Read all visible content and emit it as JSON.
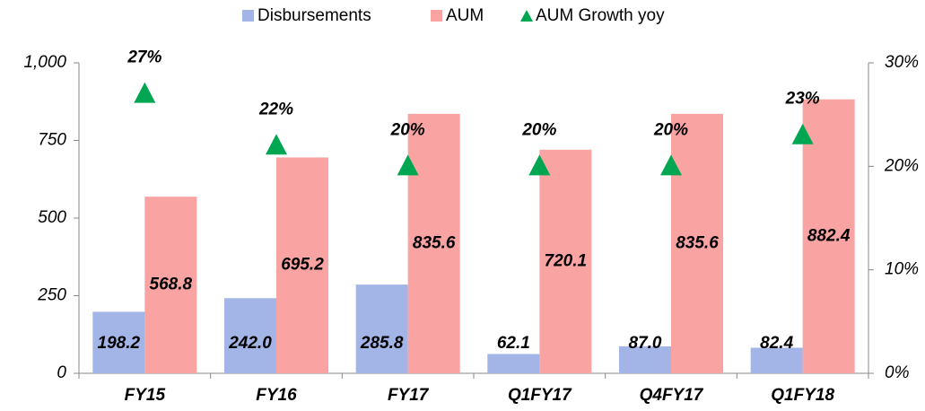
{
  "chart_data": {
    "type": "bar",
    "categories": [
      "FY15",
      "FY16",
      "FY17",
      "Q1FY17",
      "Q4FY17",
      "Q1FY18"
    ],
    "series": [
      {
        "name": "Disbursements",
        "color": "#a3b4e6",
        "values": [
          198.2,
          242.0,
          285.8,
          62.1,
          87.0,
          82.4
        ],
        "value_labels": [
          "198.2",
          "242.0",
          "285.8",
          "62.1",
          "87.0",
          "82.4"
        ]
      },
      {
        "name": "AUM",
        "color": "#f9a3a3",
        "values": [
          568.8,
          695.2,
          835.6,
          720.1,
          835.6,
          882.4
        ]
      },
      {
        "name": "AUM Growth yoy",
        "color": "#00a651",
        "axis": "y2",
        "values": [
          27,
          22,
          20,
          20,
          20,
          23
        ],
        "value_labels": [
          "27%",
          "22%",
          "20%",
          "20%",
          "20%",
          "23%"
        ]
      }
    ],
    "ylim": [
      0,
      1000
    ],
    "yticks": [
      0,
      250,
      500,
      750,
      {
        "value": 1000,
        "label": "1,000"
      }
    ],
    "y2lim": [
      0,
      30
    ],
    "y2ticks": [
      {
        "value": 0,
        "label": "0%"
      },
      {
        "value": 10,
        "label": "10%"
      },
      {
        "value": 20,
        "label": "20%"
      },
      {
        "value": 30,
        "label": "30%"
      }
    ],
    "legend": "top"
  }
}
